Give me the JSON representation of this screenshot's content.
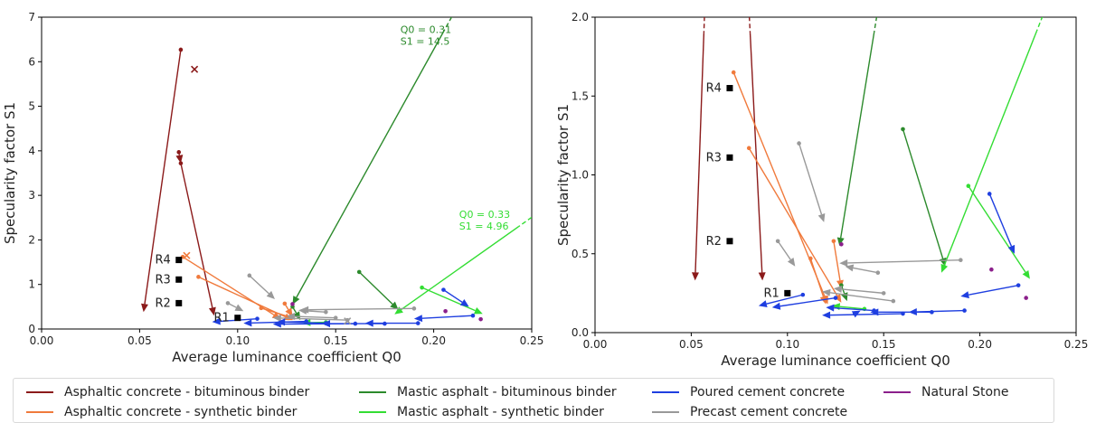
{
  "chart_data": [
    {
      "type": "scatter",
      "title": "",
      "xlabel": "Average luminance coefficient Q0",
      "ylabel": "Specularity factor S1",
      "xlim": [
        0,
        0.25
      ],
      "ylim": [
        0,
        7
      ],
      "xticks": [
        "0.00",
        "0.05",
        "0.10",
        "0.15",
        "0.20",
        "0.25"
      ],
      "xtick_values": [
        0,
        0.05,
        0.1,
        0.15,
        0.2,
        0.25
      ],
      "yticks": [
        "0",
        "1",
        "2",
        "3",
        "4",
        "5",
        "6",
        "7"
      ],
      "ytick_values": [
        0,
        1,
        2,
        3,
        4,
        5,
        6,
        7
      ],
      "grid": false,
      "arrows": [
        {
          "series": "asph_bit",
          "from": [
            0.071,
            6.27
          ],
          "to": [
            0.052,
            0.38
          ]
        },
        {
          "series": "asph_bit",
          "from": [
            0.071,
            3.72
          ],
          "to": [
            0.088,
            0.3
          ]
        },
        {
          "series": "asph_bit",
          "from": [
            0.07,
            3.97
          ],
          "to": [
            0.071,
            3.72
          ]
        },
        {
          "series": "asph_syn",
          "from": [
            0.072,
            1.62
          ],
          "to": [
            0.122,
            0.22
          ]
        },
        {
          "series": "asph_syn",
          "from": [
            0.08,
            1.17
          ],
          "to": [
            0.128,
            0.2
          ]
        },
        {
          "series": "asph_syn",
          "from": [
            0.112,
            0.47
          ],
          "to": [
            0.13,
            0.22
          ]
        },
        {
          "series": "asph_syn",
          "from": [
            0.124,
            0.57
          ],
          "to": [
            0.128,
            0.28
          ]
        },
        {
          "series": "mastic_bit",
          "from": [
            0.211,
            7.15
          ],
          "to": [
            0.128,
            0.55
          ],
          "dashed_from": true
        },
        {
          "series": "mastic_bit",
          "from": [
            0.162,
            1.28
          ],
          "to": [
            0.182,
            0.43
          ]
        },
        {
          "series": "mastic_bit",
          "from": [
            0.128,
            0.5
          ],
          "to": [
            0.132,
            0.2
          ]
        },
        {
          "series": "mastic_syn",
          "from": [
            0.253,
            2.6
          ],
          "to": [
            0.18,
            0.33
          ],
          "dashed_from": true
        },
        {
          "series": "mastic_syn",
          "from": [
            0.194,
            0.93
          ],
          "to": [
            0.225,
            0.34
          ]
        },
        {
          "series": "mastic_syn",
          "from": [
            0.145,
            0.15
          ],
          "to": [
            0.133,
            0.14
          ]
        },
        {
          "series": "precast",
          "from": [
            0.106,
            1.2
          ],
          "to": [
            0.119,
            0.67
          ]
        },
        {
          "series": "precast",
          "from": [
            0.095,
            0.58
          ],
          "to": [
            0.103,
            0.4
          ]
        },
        {
          "series": "precast",
          "from": [
            0.19,
            0.46
          ],
          "to": [
            0.132,
            0.43
          ]
        },
        {
          "series": "precast",
          "from": [
            0.156,
            0.2
          ],
          "to": [
            0.118,
            0.25
          ]
        },
        {
          "series": "precast",
          "from": [
            0.145,
            0.38
          ],
          "to": [
            0.131,
            0.42
          ]
        },
        {
          "series": "precast",
          "from": [
            0.15,
            0.25
          ],
          "to": [
            0.125,
            0.29
          ]
        },
        {
          "series": "poured",
          "from": [
            0.205,
            0.88
          ],
          "to": [
            0.218,
            0.5
          ]
        },
        {
          "series": "poured",
          "from": [
            0.22,
            0.3
          ],
          "to": [
            0.19,
            0.23
          ]
        },
        {
          "series": "poured",
          "from": [
            0.11,
            0.23
          ],
          "to": [
            0.087,
            0.16
          ]
        },
        {
          "series": "poured",
          "from": [
            0.135,
            0.17
          ],
          "to": [
            0.103,
            0.13
          ]
        },
        {
          "series": "poured",
          "from": [
            0.192,
            0.13
          ],
          "to": [
            0.165,
            0.13
          ]
        },
        {
          "series": "poured",
          "from": [
            0.175,
            0.12
          ],
          "to": [
            0.143,
            0.12
          ]
        },
        {
          "series": "poured",
          "from": [
            0.16,
            0.12
          ],
          "to": [
            0.118,
            0.11
          ]
        },
        {
          "series": "poured",
          "from": [
            0.145,
            0.13
          ],
          "to": [
            0.12,
            0.16
          ]
        }
      ],
      "points": [
        {
          "series": "asph_bit",
          "marker": "x",
          "x": 0.078,
          "y": 5.83
        },
        {
          "series": "asph_syn",
          "marker": "x",
          "x": 0.074,
          "y": 1.65
        },
        {
          "series": "precast",
          "marker": "x",
          "x": 0.156,
          "y": 0.18
        },
        {
          "series": "natural",
          "marker": "dot",
          "x": 0.206,
          "y": 0.4
        },
        {
          "series": "natural",
          "marker": "dot",
          "x": 0.224,
          "y": 0.22
        },
        {
          "series": "natural",
          "marker": "dot",
          "x": 0.128,
          "y": 0.56
        }
      ],
      "reference_points": [
        {
          "label": "R1",
          "x": 0.1,
          "y": 0.25
        },
        {
          "label": "R2",
          "x": 0.07,
          "y": 0.58
        },
        {
          "label": "R3",
          "x": 0.07,
          "y": 1.11
        },
        {
          "label": "R4",
          "x": 0.07,
          "y": 1.55
        }
      ],
      "annotations": [
        {
          "lines": [
            "Q0 = 0.31",
            "S1 = 14.5"
          ],
          "series": "mastic_bit",
          "x": 0.183,
          "y": 6.65
        },
        {
          "lines": [
            "Q0 = 0.33",
            "S1 = 4.96"
          ],
          "series": "mastic_syn",
          "x": 0.213,
          "y": 2.5
        }
      ]
    },
    {
      "type": "scatter",
      "title": "",
      "xlabel": "Average luminance coefficient Q0",
      "ylabel": "Specularity factor S1",
      "xlim": [
        0,
        0.25
      ],
      "ylim": [
        0,
        2
      ],
      "xticks": [
        "0.00",
        "0.05",
        "0.10",
        "0.15",
        "0.20",
        "0.25"
      ],
      "xtick_values": [
        0,
        0.05,
        0.1,
        0.15,
        0.2,
        0.25
      ],
      "yticks": [
        "0.0",
        "0.5",
        "1.0",
        "1.5",
        "2.0"
      ],
      "ytick_values": [
        0,
        0.5,
        1,
        1.5,
        2
      ],
      "grid": false,
      "arrows": [
        {
          "series": "asph_bit",
          "from": [
            0.057,
            2.05
          ],
          "to": [
            0.052,
            0.33
          ],
          "dashed_from": true
        },
        {
          "series": "asph_bit",
          "from": [
            0.08,
            2.05
          ],
          "to": [
            0.087,
            0.33
          ],
          "dashed_from": true
        },
        {
          "series": "asph_syn",
          "from": [
            0.072,
            1.65
          ],
          "to": [
            0.121,
            0.18
          ]
        },
        {
          "series": "asph_syn",
          "from": [
            0.08,
            1.17
          ],
          "to": [
            0.128,
            0.19
          ]
        },
        {
          "series": "asph_syn",
          "from": [
            0.112,
            0.47
          ],
          "to": [
            0.12,
            0.18
          ]
        },
        {
          "series": "asph_syn",
          "from": [
            0.124,
            0.58
          ],
          "to": [
            0.128,
            0.28
          ]
        },
        {
          "series": "mastic_bit",
          "from": [
            0.147,
            2.05
          ],
          "to": [
            0.127,
            0.55
          ],
          "dashed_from": true
        },
        {
          "series": "mastic_bit",
          "from": [
            0.16,
            1.29
          ],
          "to": [
            0.182,
            0.42
          ]
        },
        {
          "series": "mastic_bit",
          "from": [
            0.128,
            0.3
          ],
          "to": [
            0.131,
            0.2
          ]
        },
        {
          "series": "mastic_syn",
          "from": [
            0.234,
            2.05
          ],
          "to": [
            0.18,
            0.38
          ],
          "dashed_from": true
        },
        {
          "series": "mastic_syn",
          "from": [
            0.194,
            0.93
          ],
          "to": [
            0.226,
            0.34
          ]
        },
        {
          "series": "mastic_syn",
          "from": [
            0.14,
            0.15
          ],
          "to": [
            0.123,
            0.17
          ]
        },
        {
          "series": "precast",
          "from": [
            0.106,
            1.2
          ],
          "to": [
            0.119,
            0.7
          ]
        },
        {
          "series": "precast",
          "from": [
            0.095,
            0.58
          ],
          "to": [
            0.104,
            0.42
          ]
        },
        {
          "series": "precast",
          "from": [
            0.19,
            0.46
          ],
          "to": [
            0.127,
            0.44
          ]
        },
        {
          "series": "precast",
          "from": [
            0.147,
            0.38
          ],
          "to": [
            0.13,
            0.42
          ]
        },
        {
          "series": "precast",
          "from": [
            0.155,
            0.2
          ],
          "to": [
            0.118,
            0.26
          ]
        },
        {
          "series": "precast",
          "from": [
            0.15,
            0.25
          ],
          "to": [
            0.124,
            0.28
          ]
        },
        {
          "series": "poured",
          "from": [
            0.205,
            0.88
          ],
          "to": [
            0.218,
            0.5
          ]
        },
        {
          "series": "poured",
          "from": [
            0.22,
            0.3
          ],
          "to": [
            0.19,
            0.23
          ]
        },
        {
          "series": "poured",
          "from": [
            0.108,
            0.24
          ],
          "to": [
            0.085,
            0.17
          ]
        },
        {
          "series": "poured",
          "from": [
            0.125,
            0.22
          ],
          "to": [
            0.092,
            0.16
          ]
        },
        {
          "series": "poured",
          "from": [
            0.192,
            0.14
          ],
          "to": [
            0.163,
            0.13
          ]
        },
        {
          "series": "poured",
          "from": [
            0.175,
            0.13
          ],
          "to": [
            0.143,
            0.13
          ]
        },
        {
          "series": "poured",
          "from": [
            0.16,
            0.12
          ],
          "to": [
            0.118,
            0.11
          ]
        },
        {
          "series": "poured",
          "from": [
            0.145,
            0.14
          ],
          "to": [
            0.12,
            0.16
          ]
        },
        {
          "series": "poured",
          "from": [
            0.135,
            0.12
          ],
          "to": [
            0.138,
            0.14
          ]
        }
      ],
      "points": [
        {
          "series": "natural",
          "marker": "dot",
          "x": 0.206,
          "y": 0.4
        },
        {
          "series": "natural",
          "marker": "dot",
          "x": 0.224,
          "y": 0.22
        },
        {
          "series": "natural",
          "marker": "dot",
          "x": 0.128,
          "y": 0.56
        }
      ],
      "reference_points": [
        {
          "label": "R1",
          "x": 0.1,
          "y": 0.25
        },
        {
          "label": "R2",
          "x": 0.07,
          "y": 0.58
        },
        {
          "label": "R3",
          "x": 0.07,
          "y": 1.11
        },
        {
          "label": "R4",
          "x": 0.07,
          "y": 1.55
        }
      ],
      "annotations": []
    }
  ],
  "legend": [
    {
      "key": "asph_bit",
      "label": "Asphaltic concrete - bituminous binder",
      "color": "#8b1a1a"
    },
    {
      "key": "asph_syn",
      "label": "Asphaltic concrete - synthetic binder",
      "color": "#f07a3c"
    },
    {
      "key": "mastic_bit",
      "label": "Mastic asphalt - bituminous binder",
      "color": "#2c8a2c"
    },
    {
      "key": "mastic_syn",
      "label": "Mastic asphalt - synthetic binder",
      "color": "#33dd33"
    },
    {
      "key": "poured",
      "label": "Poured cement concrete",
      "color": "#1f3fe0"
    },
    {
      "key": "precast",
      "label": "Precast cement concrete",
      "color": "#999999"
    },
    {
      "key": "natural",
      "label": "Natural Stone",
      "color": "#8b1f8b"
    }
  ],
  "reference_color": "#000000"
}
